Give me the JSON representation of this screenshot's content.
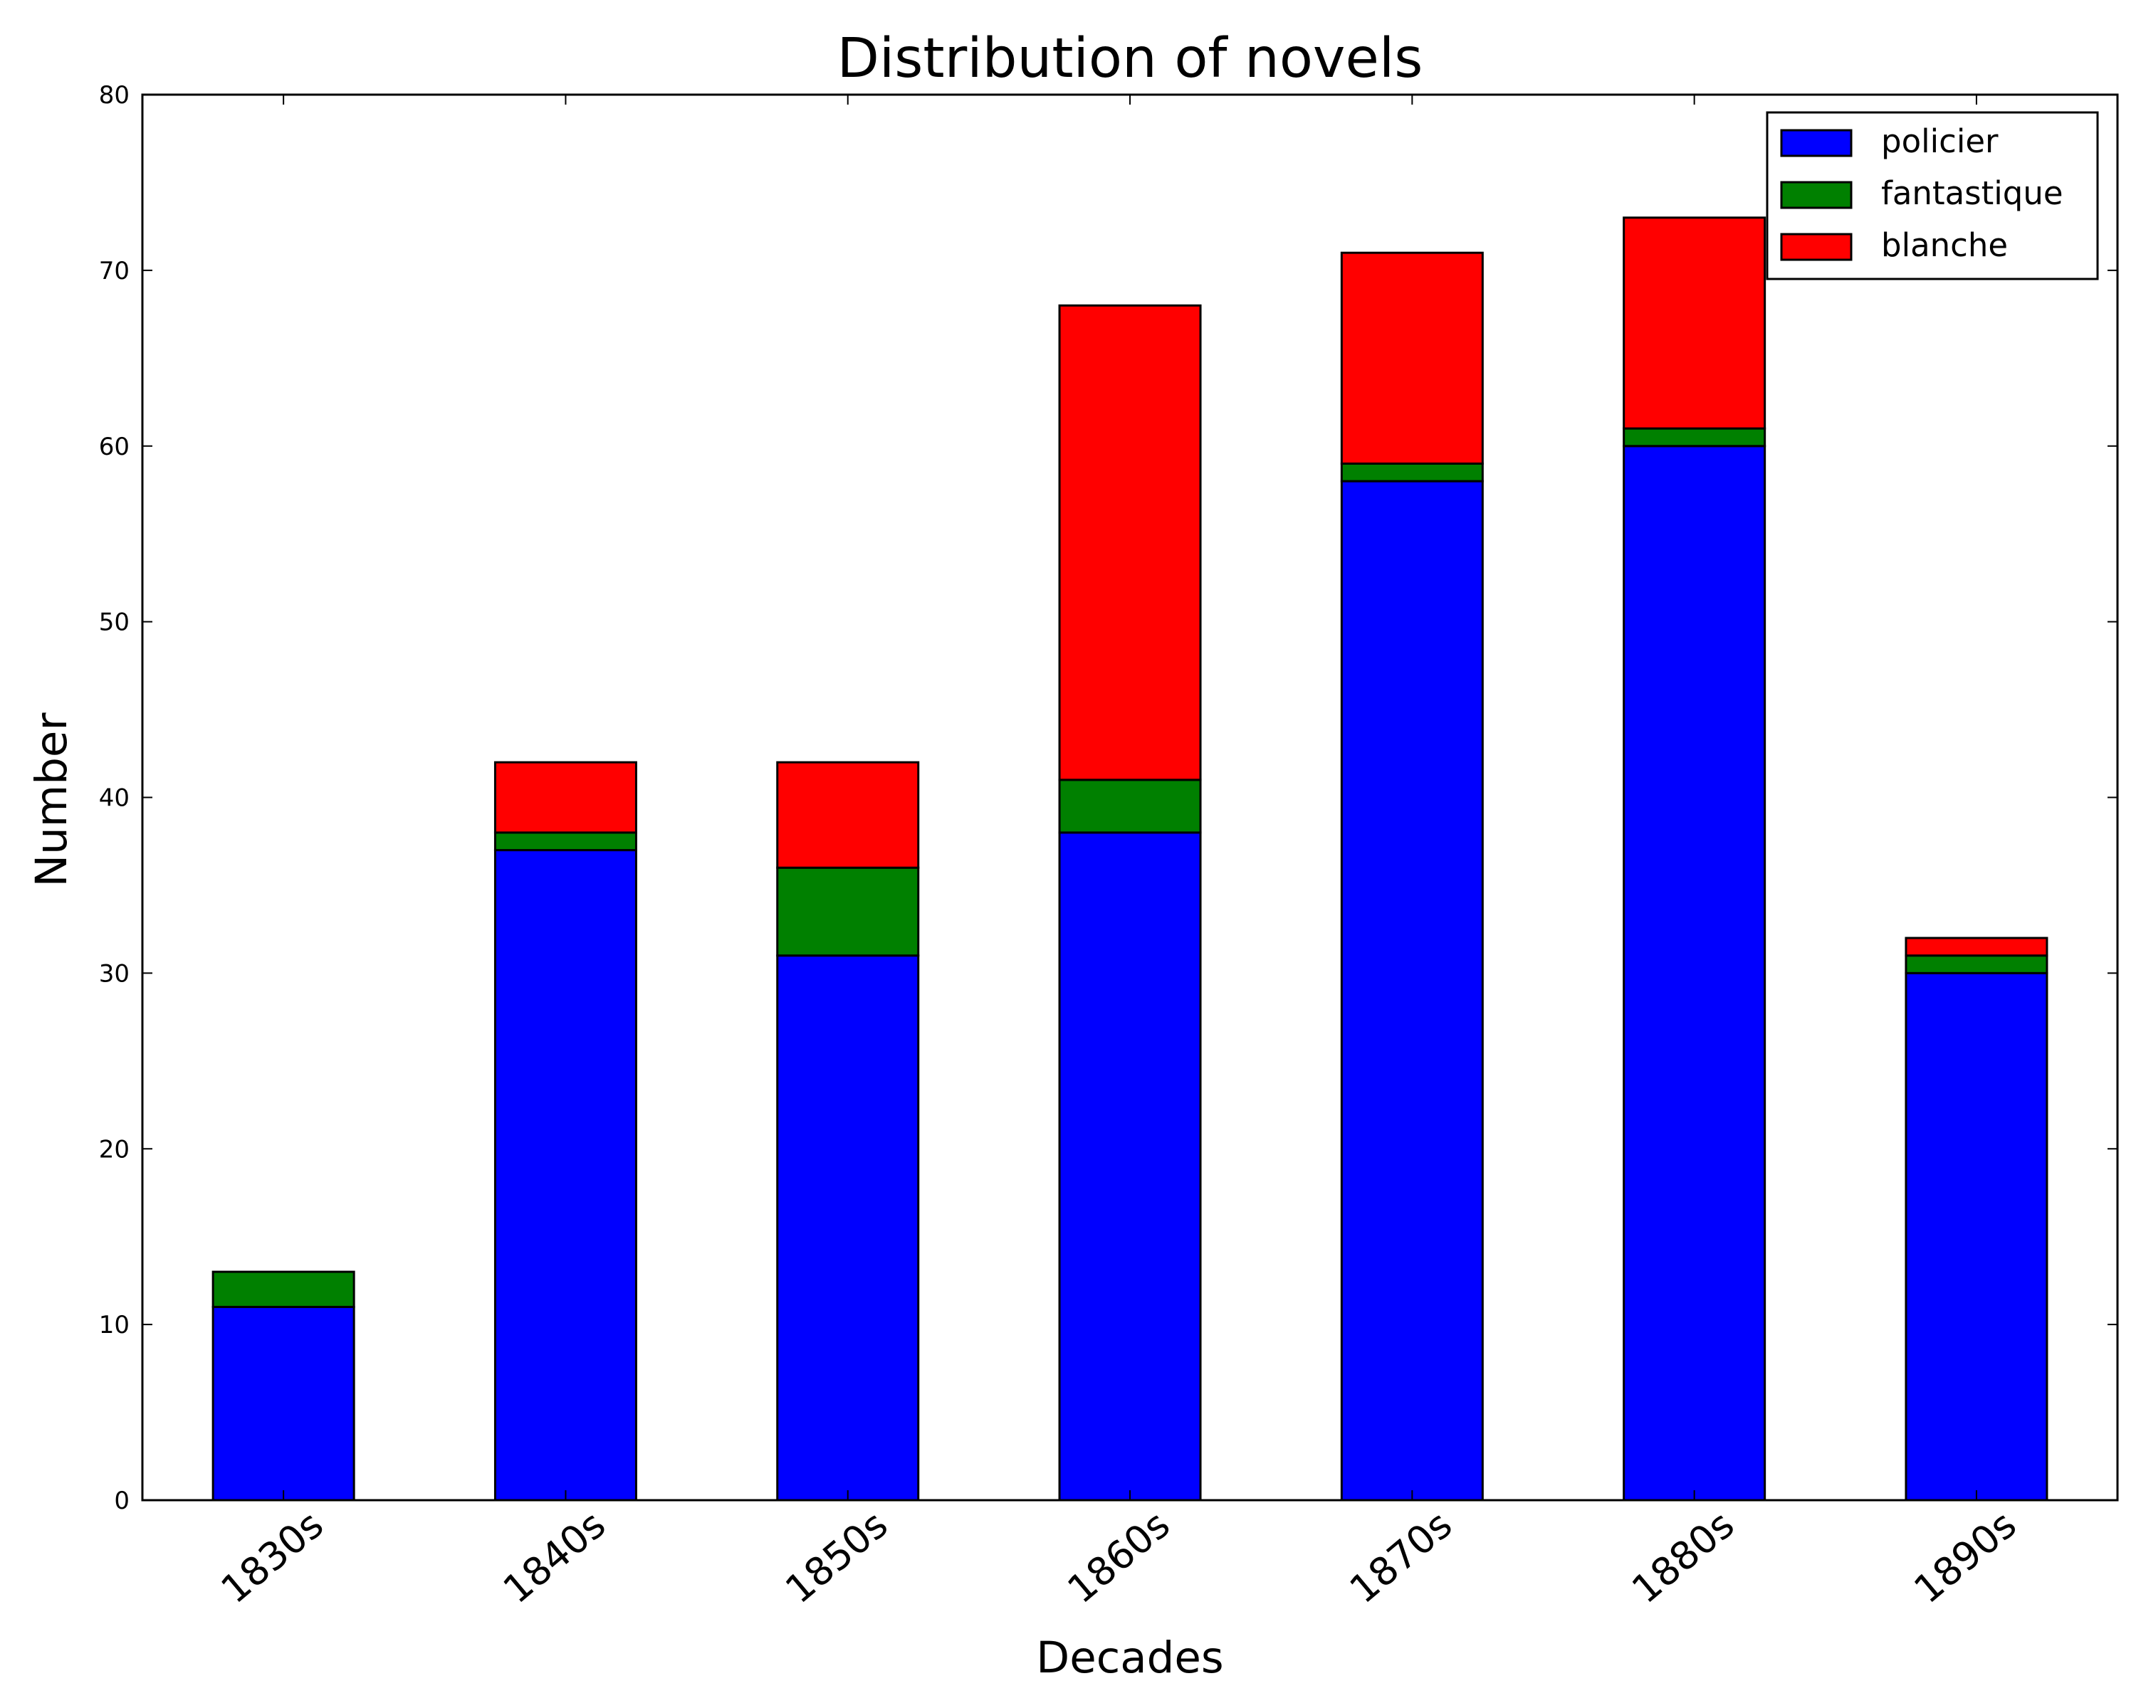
{
  "chart_data": {
    "type": "bar",
    "stacked": true,
    "title": "Distribution of novels",
    "xlabel": "Decades",
    "ylabel": "Number",
    "categories": [
      "1830s",
      "1840s",
      "1850s",
      "1860s",
      "1870s",
      "1880s",
      "1890s"
    ],
    "series": [
      {
        "name": "policier",
        "color": "#0000ff",
        "values": [
          11,
          37,
          31,
          38,
          58,
          60,
          30
        ]
      },
      {
        "name": "fantastique",
        "color": "#008000",
        "values": [
          2,
          1,
          5,
          3,
          1,
          1,
          1
        ]
      },
      {
        "name": "blanche",
        "color": "#ff0000",
        "values": [
          0,
          4,
          6,
          27,
          12,
          12,
          1
        ]
      }
    ],
    "ylim": [
      0,
      80
    ],
    "yticks": [
      0,
      10,
      20,
      30,
      40,
      50,
      60,
      70,
      80
    ],
    "grid": false,
    "legend_position": "top-right"
  }
}
